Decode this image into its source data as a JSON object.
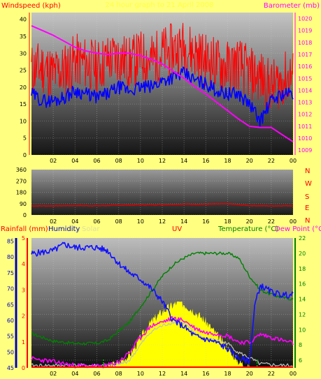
{
  "panel1": {
    "left_label": "Windspeed (kph)",
    "center_label": "24 hour graph to 21 April 2008",
    "right_label": "Barometer (mb)",
    "left_color": "#ff0000",
    "right_color": "#ff00ff",
    "center_color": "#ffff40"
  },
  "panel2": {
    "compass_labels": [
      "N",
      "W",
      "S",
      "E",
      "N"
    ],
    "compass_color": "#ff0000"
  },
  "panel3": {
    "labels": {
      "rainfall": "Rainfall (mm)",
      "humidity": "Humidity",
      "solar": "Solar",
      "uv": "UV",
      "temperature": "Temperature (°C)",
      "dewpoint": "Dew Point (°C"
    },
    "colors": {
      "rainfall": "#ff0000",
      "humidity": "#0000c0",
      "solar": "#e0e0a0",
      "uv": "#ff0000",
      "temperature": "#008000",
      "dewpoint": "#ff00ff"
    }
  },
  "chart_data": [
    {
      "type": "line",
      "name": "wind-barometer",
      "x_ticks": [
        "02",
        "04",
        "06",
        "08",
        "10",
        "12",
        "14",
        "16",
        "18",
        "20",
        "22",
        "00"
      ],
      "left_axis": {
        "ylim": [
          0,
          42
        ],
        "ticks": [
          0,
          5,
          10,
          15,
          20,
          25,
          30,
          35,
          40
        ]
      },
      "right_axis": {
        "ylim": [
          1008.6,
          1020.5
        ],
        "ticks": [
          1009,
          1010,
          1011,
          1012,
          1013,
          1014,
          1015,
          1016,
          1017,
          1018,
          1019,
          1020
        ]
      },
      "series": [
        {
          "axis": "left",
          "color": "#ff0000",
          "x": [
            0,
            1,
            2,
            3,
            4,
            5,
            6,
            7,
            8,
            9,
            10,
            11,
            12,
            13,
            14,
            15,
            16,
            17,
            18,
            19,
            20,
            21,
            22,
            23,
            24
          ],
          "values": [
            25,
            26,
            24,
            25,
            28,
            27,
            26,
            28,
            29,
            27,
            29,
            28,
            30,
            31,
            32,
            30,
            28,
            27,
            26,
            27,
            24,
            23,
            20,
            22,
            24
          ]
        },
        {
          "axis": "left",
          "color": "#0000ff",
          "x": [
            0,
            1,
            2,
            3,
            4,
            5,
            6,
            7,
            8,
            9,
            10,
            11,
            12,
            13,
            14,
            15,
            16,
            17,
            18,
            19,
            20,
            21,
            22,
            23,
            24
          ],
          "values": [
            18,
            16,
            16,
            17,
            19,
            18,
            17,
            18,
            20,
            19,
            20,
            20,
            22,
            23,
            24,
            22,
            21,
            19,
            18,
            18,
            15,
            10,
            16,
            18,
            18
          ]
        },
        {
          "axis": "right",
          "color": "#ff00ff",
          "x": [
            0,
            1,
            2,
            3,
            4,
            5,
            6,
            7,
            8,
            9,
            10,
            11,
            12,
            13,
            14,
            15,
            16,
            17,
            18,
            19,
            20,
            21,
            22,
            23,
            24
          ],
          "values": [
            1019.4,
            1019.0,
            1018.6,
            1018.1,
            1017.6,
            1017.3,
            1017.1,
            1017.0,
            1017.1,
            1017.1,
            1016.9,
            1016.6,
            1016.2,
            1015.6,
            1015.0,
            1014.3,
            1013.7,
            1013.0,
            1012.3,
            1011.6,
            1011.0,
            1010.9,
            1010.9,
            1010.3,
            1009.7
          ]
        }
      ]
    },
    {
      "type": "line",
      "name": "wind-direction",
      "x_ticks": [
        "02",
        "04",
        "06",
        "08",
        "10",
        "12",
        "14",
        "16",
        "18",
        "20",
        "22",
        "00"
      ],
      "y_axis": {
        "ylim": [
          0,
          360
        ],
        "ticks": [
          0,
          90,
          180,
          270,
          360
        ]
      },
      "series": [
        {
          "color": "#e00000",
          "x": [
            0,
            2,
            4,
            6,
            8,
            10,
            12,
            14,
            16,
            18,
            20,
            22,
            24
          ],
          "values": [
            72,
            72,
            75,
            73,
            78,
            80,
            82,
            85,
            85,
            88,
            75,
            72,
            74
          ]
        }
      ]
    },
    {
      "type": "line",
      "name": "rain-humidity-temperature",
      "x_ticks": [
        "02",
        "04",
        "06",
        "08",
        "10",
        "12",
        "14",
        "16",
        "18",
        "20",
        "22",
        "00"
      ],
      "rain_axis": {
        "ylim": [
          0,
          5
        ],
        "ticks": [
          0,
          1,
          2,
          3,
          4,
          5
        ]
      },
      "humidity_axis": {
        "ylim": [
          45,
          86
        ],
        "ticks": [
          45,
          50,
          55,
          60,
          65,
          70,
          75,
          80,
          85
        ]
      },
      "temperature_axis": {
        "ylim": [
          5,
          22
        ],
        "ticks": [
          6,
          8,
          10,
          12,
          14,
          16,
          18,
          20,
          22
        ]
      },
      "series": [
        {
          "axis": "humidity",
          "color": "#1010ff",
          "x": [
            0,
            2,
            3,
            4,
            6,
            7,
            8,
            9,
            10,
            11,
            12,
            13,
            14,
            15,
            16,
            17,
            18,
            19,
            20,
            20.5,
            21,
            22,
            23,
            24
          ],
          "values": [
            81,
            82,
            84,
            83,
            83,
            82,
            78,
            75,
            73,
            70,
            66,
            60,
            58,
            55,
            54,
            53,
            51,
            48,
            47,
            65,
            71,
            69,
            68,
            68
          ]
        },
        {
          "axis": "temperature",
          "color": "#008000",
          "x": [
            0,
            2,
            4,
            6,
            7,
            8,
            9,
            10,
            11,
            12,
            13,
            14,
            15,
            16,
            17,
            18,
            19,
            20,
            21,
            22,
            23,
            24
          ],
          "values": [
            9.5,
            8.5,
            8.2,
            8.2,
            8.6,
            9.8,
            11,
            13,
            15,
            17,
            18.5,
            19.4,
            20,
            20,
            20,
            20,
            19.4,
            17,
            15.2,
            14.6,
            14.2,
            14
          ]
        },
        {
          "axis": "temperature",
          "color": "#ff00ff",
          "x": [
            0,
            2,
            4,
            6,
            7,
            8,
            9,
            10,
            11,
            12,
            13,
            14,
            15,
            16,
            17,
            18,
            19,
            20,
            21,
            22,
            23,
            24
          ],
          "values": [
            6.2,
            5.8,
            5.3,
            5.2,
            5.3,
            5.8,
            7,
            9,
            10.5,
            11,
            11.5,
            11.2,
            10.2,
            9.6,
            9.5,
            9.2,
            8.4,
            8.3,
            9.4,
            9,
            8.6,
            8.2
          ]
        },
        {
          "axis": "temperature",
          "color": "#c0c0c0",
          "x": [
            0,
            2,
            4,
            6,
            7,
            8,
            9,
            10,
            11,
            12,
            13,
            14,
            15,
            16,
            17,
            18,
            19,
            20,
            21,
            22,
            23,
            24
          ],
          "values": [
            5.3,
            5.3,
            5.3,
            5.3,
            5.3,
            5.4,
            6,
            8,
            9.8,
            10.5,
            11,
            10.8,
            9.5,
            8.8,
            8.6,
            8.2,
            7,
            6.3,
            5.5,
            5.4,
            5.3,
            5.3
          ]
        },
        {
          "axis": "solar",
          "color": "#ffff00",
          "x": [
            6.5,
            7,
            8,
            9,
            10,
            11,
            12,
            13,
            13.5,
            14,
            15,
            16,
            17,
            18,
            19,
            20
          ],
          "values": [
            0,
            2,
            8,
            20,
            45,
            70,
            85,
            95,
            100,
            96,
            85,
            70,
            50,
            30,
            10,
            0
          ]
        }
      ]
    }
  ]
}
